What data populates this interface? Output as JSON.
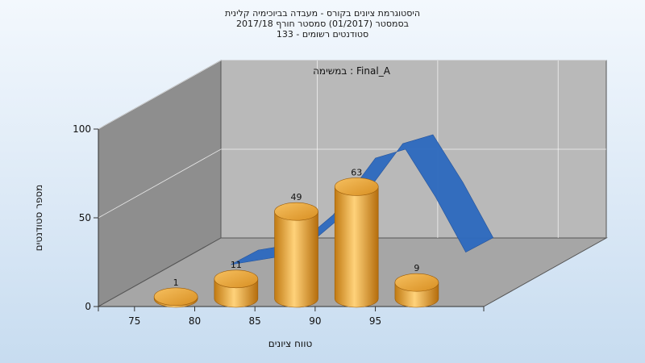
{
  "chart_data": {
    "type": "bar",
    "title_lines": [
      "היסטוגרמת ציונים בקורס - מעבדה בביוכימיה קלינית",
      "בסמסטר  (01/2017)  סמסטר חורף 2017/18",
      "סטודנטים רשומים - 133"
    ],
    "annotation": "במשימה : Final_A",
    "xlabel": "טווח ציונים",
    "ylabel": "מספר סטודנטים",
    "x_ticks": [
      "75",
      "80",
      "85",
      "90",
      "95"
    ],
    "y_ticks": [
      "0",
      "50",
      "100"
    ],
    "ylim": [
      0,
      100
    ],
    "categories": [
      "75-80",
      "80-85",
      "85-90",
      "90-95",
      "95-100"
    ],
    "values": [
      1,
      11,
      49,
      63,
      9
    ],
    "grid": true,
    "legend": "none",
    "colors": {
      "bar": "#e8a53a",
      "curve": "#2f6bbf",
      "back_wall": "#b9b9b9",
      "side_wall": "#8e8e8e",
      "floor": "#a6a6a6"
    }
  }
}
